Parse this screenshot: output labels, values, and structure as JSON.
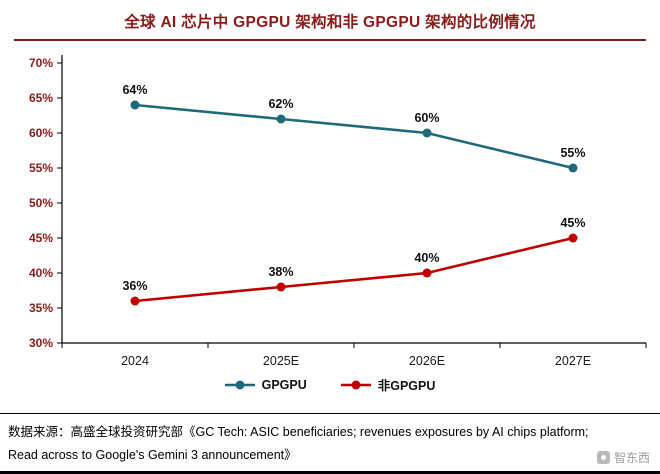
{
  "page": {
    "title": "全球 AI 芯片中 GPGPU 架构和非 GPGPU 架构的比例情况"
  },
  "chart_data": {
    "type": "line",
    "categories": [
      "2024",
      "2025E",
      "2026E",
      "2027E"
    ],
    "series": [
      {
        "name": "GPGPU",
        "color": "#20697B",
        "values": [
          64,
          62,
          60,
          55
        ]
      },
      {
        "name": "非GPGPU",
        "color": "#C00000",
        "values": [
          36,
          38,
          40,
          45
        ]
      }
    ],
    "ylim": [
      30,
      70
    ],
    "ytick_step": 5,
    "ytick_suffix": "%",
    "data_label_suffix": "%",
    "legend_position": "bottom",
    "grid": false,
    "title": "全球 AI 芯片中 GPGPU 架构和非 GPGPU 架构的比例情况",
    "xlabel": "",
    "ylabel": ""
  },
  "footer": {
    "line1": "数据来源：高盛全球投资研究部《GC Tech: ASIC beneficiaries; revenues exposures by AI chips platform;",
    "line2": "Read across to Google's Gemini 3 announcement》",
    "watermark": "智东西"
  },
  "colors": {
    "title": "#8B1A1A",
    "axis_label": "#8B1A1A",
    "gpgpu": "#20697B",
    "non_gpgpu": "#C00000"
  }
}
